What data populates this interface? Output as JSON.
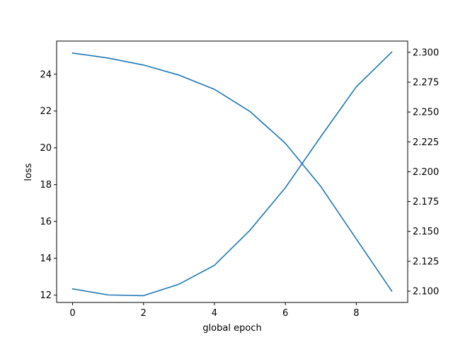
{
  "chart_data": {
    "type": "line",
    "title": "",
    "xlabel": "global epoch",
    "ylabel": "loss",
    "y2label": "",
    "xlim": [
      -0.45,
      9.45
    ],
    "ylim": [
      11.6,
      25.8
    ],
    "y2lim": [
      2.0905,
      2.3094
    ],
    "x_ticks": [
      0,
      2,
      4,
      6,
      8
    ],
    "y_ticks": [
      12,
      14,
      16,
      18,
      20,
      22,
      24
    ],
    "y2_ticks": [
      2.1,
      2.125,
      2.15,
      2.175,
      2.2,
      2.225,
      2.25,
      2.275,
      2.3
    ],
    "y2_tick_format": 3,
    "grid": false,
    "series": [
      {
        "axis": "left",
        "color": "#1f77b4",
        "x": [
          0,
          1,
          2,
          3,
          4,
          5,
          6,
          7,
          8,
          9
        ],
        "values": [
          25.15,
          24.88,
          24.5,
          23.95,
          23.18,
          21.98,
          20.25,
          17.9,
          15.05,
          12.22
        ]
      },
      {
        "axis": "right",
        "color": "#1f77b4",
        "x": [
          0,
          1,
          2,
          3,
          4,
          5,
          6,
          7,
          8,
          9
        ],
        "values": [
          2.1019,
          2.0968,
          2.0962,
          2.1058,
          2.1216,
          2.1509,
          2.1866,
          2.2294,
          2.2711,
          2.3002
        ]
      }
    ]
  }
}
